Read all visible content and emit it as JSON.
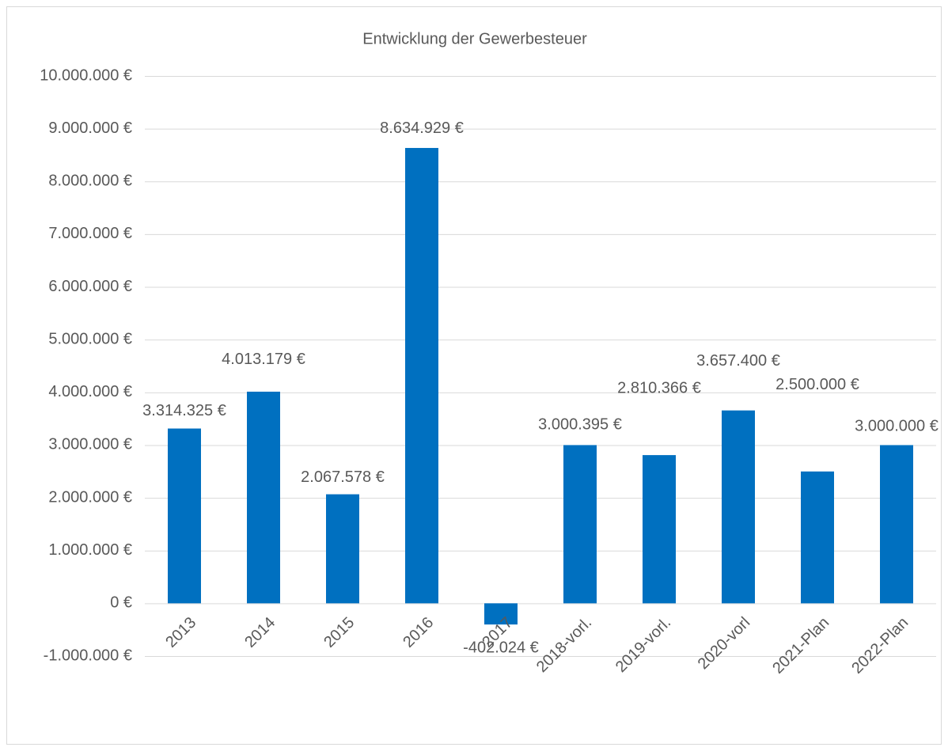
{
  "chart_data": {
    "type": "bar",
    "title": "Entwicklung der Gewerbesteuer",
    "categories": [
      "2013",
      "2014",
      "2015",
      "2016",
      "2017",
      "2018-vorl.",
      "2019-vorl.",
      "2020-vorl",
      "2021-Plan",
      "2022-Plan"
    ],
    "values": [
      3314325,
      4013179,
      2067578,
      8634929,
      -402024,
      3000395,
      2810366,
      3657400,
      2500000,
      3000000
    ],
    "value_labels": [
      "3.314.325 €",
      "4.013.179 €",
      "2.067.578 €",
      "8.634.929 €",
      "-402.024 €",
      "3.000.395 €",
      "2.810.366 €",
      "3.657.400 €",
      "2.500.000 €",
      "3.000.000 €"
    ],
    "color": "#0070c0",
    "ylim": [
      -1000000,
      10000000
    ],
    "yticks": [
      {
        "value": -1000000,
        "label": "-1.000.000 €"
      },
      {
        "value": 0,
        "label": "0 €"
      },
      {
        "value": 1000000,
        "label": "1.000.000 €"
      },
      {
        "value": 2000000,
        "label": "2.000.000 €"
      },
      {
        "value": 3000000,
        "label": "3.000.000 €"
      },
      {
        "value": 4000000,
        "label": "4.000.000 €"
      },
      {
        "value": 5000000,
        "label": "5.000.000 €"
      },
      {
        "value": 6000000,
        "label": "6.000.000 €"
      },
      {
        "value": 7000000,
        "label": "7.000.000 €"
      },
      {
        "value": 8000000,
        "label": "8.000.000 €"
      },
      {
        "value": 9000000,
        "label": "9.000.000 €"
      },
      {
        "value": 10000000,
        "label": "10.000.000 €"
      }
    ],
    "grid": true
  }
}
